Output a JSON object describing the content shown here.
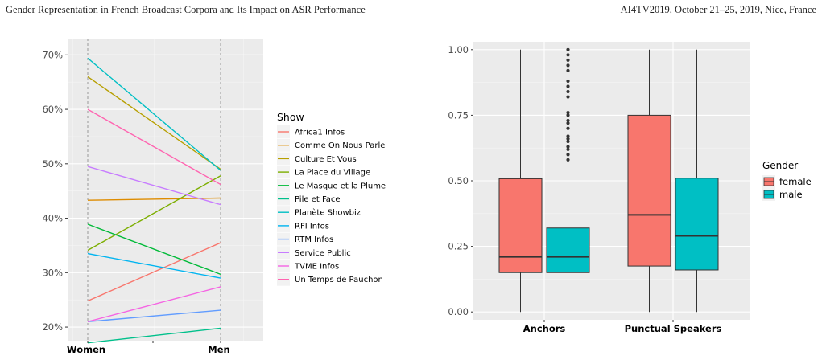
{
  "header": {
    "left": "Gender Representation in French Broadcast Corpora and Its Impact on ASR Performance",
    "right": "AI4TV2019, October 21–25, 2019, Nice, France"
  },
  "chart_data": [
    {
      "type": "line",
      "categories": [
        "Women",
        "Men"
      ],
      "ylim": [
        0.175,
        0.73
      ],
      "yticks": [
        {
          "v": 0.2,
          "label": "20%"
        },
        {
          "v": 0.3,
          "label": "30%"
        },
        {
          "v": 0.4,
          "label": "40%"
        },
        {
          "v": 0.5,
          "label": "50%"
        },
        {
          "v": 0.6,
          "label": "60%"
        },
        {
          "v": 0.7,
          "label": "70%"
        }
      ],
      "legend_title": "Show",
      "legend_position": "right",
      "series": [
        {
          "name": "Africa1 Infos",
          "color": "#F8766D",
          "values": [
            0.248,
            0.355
          ]
        },
        {
          "name": "Comme On Nous Parle",
          "color": "#DE8C00",
          "values": [
            0.433,
            0.437
          ]
        },
        {
          "name": "Culture Et Vous",
          "color": "#B79F00",
          "values": [
            0.66,
            0.49
          ]
        },
        {
          "name": "La Place du Village",
          "color": "#7CAE00",
          "values": [
            0.341,
            0.478
          ]
        },
        {
          "name": "Le Masque et la Plume",
          "color": "#00BA38",
          "values": [
            0.389,
            0.297
          ]
        },
        {
          "name": "Pile et Face",
          "color": "#00C08B",
          "values": [
            0.171,
            0.198
          ]
        },
        {
          "name": "Planète Showbiz",
          "color": "#00BFC4",
          "values": [
            0.694,
            0.488
          ]
        },
        {
          "name": "RFI Infos",
          "color": "#00B4F0",
          "values": [
            0.335,
            0.29
          ]
        },
        {
          "name": "RTM Infos",
          "color": "#619CFF",
          "values": [
            0.21,
            0.231
          ]
        },
        {
          "name": "Service Public",
          "color": "#C77CFF",
          "values": [
            0.495,
            0.425
          ]
        },
        {
          "name": "TVME Infos",
          "color": "#F564E3",
          "values": [
            0.21,
            0.274
          ]
        },
        {
          "name": "Un Temps de Pauchon",
          "color": "#FF64B0",
          "values": [
            0.6,
            0.462
          ]
        }
      ]
    },
    {
      "type": "boxplot",
      "categories": [
        "Anchors",
        "Punctual Speakers"
      ],
      "ylim": [
        -0.03,
        1.03
      ],
      "yticks": [
        {
          "v": 0.0,
          "label": "0.00"
        },
        {
          "v": 0.25,
          "label": "0.25"
        },
        {
          "v": 0.5,
          "label": "0.50"
        },
        {
          "v": 0.75,
          "label": "0.75"
        },
        {
          "v": 1.0,
          "label": "1.00"
        }
      ],
      "legend_title": "Gender",
      "legend_position": "right",
      "groups": [
        {
          "name": "female",
          "color": "#F8766D"
        },
        {
          "name": "male",
          "color": "#00BFC4"
        }
      ],
      "boxes": [
        {
          "category": "Anchors",
          "group": "female",
          "min": 0.0,
          "q1": 0.15,
          "median": 0.21,
          "q3": 0.508,
          "max": 1.0,
          "outliers": []
        },
        {
          "category": "Anchors",
          "group": "male",
          "min": 0.0,
          "q1": 0.15,
          "median": 0.21,
          "q3": 0.32,
          "max": 0.7,
          "outliers": [
            0.58,
            0.6,
            0.62,
            0.63,
            0.65,
            0.66,
            0.67,
            0.7,
            0.72,
            0.73,
            0.75,
            0.76,
            0.82,
            0.84,
            0.86,
            0.88,
            0.92,
            0.94,
            0.96,
            0.98,
            1.0
          ]
        },
        {
          "category": "Punctual Speakers",
          "group": "female",
          "min": 0.0,
          "q1": 0.175,
          "median": 0.37,
          "q3": 0.75,
          "max": 1.0,
          "outliers": []
        },
        {
          "category": "Punctual Speakers",
          "group": "male",
          "min": 0.0,
          "q1": 0.16,
          "median": 0.29,
          "q3": 0.51,
          "max": 1.0,
          "outliers": []
        }
      ]
    }
  ]
}
